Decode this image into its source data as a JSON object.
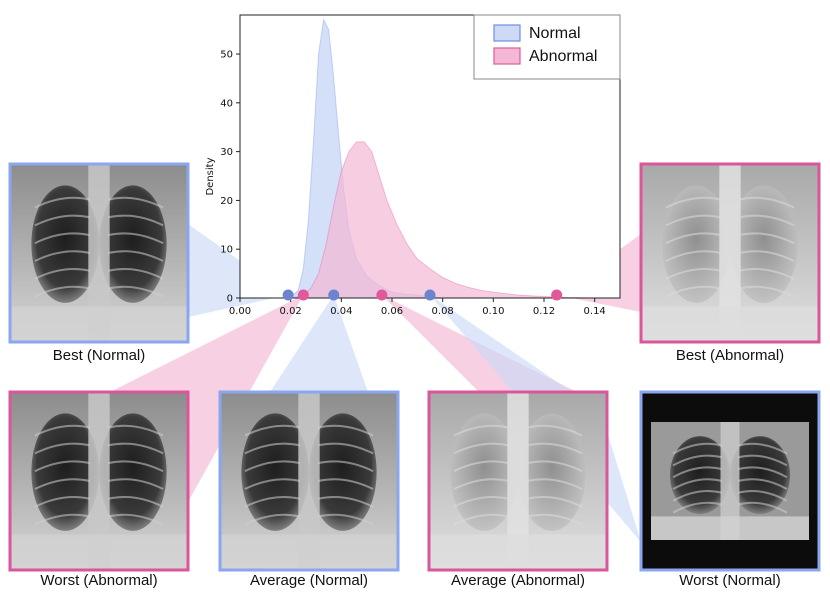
{
  "chart_data": {
    "type": "area",
    "title": "",
    "xlabel": "",
    "ylabel": "Density",
    "xlim": [
      0.0,
      0.15
    ],
    "ylim": [
      0,
      58
    ],
    "xticks": [
      "0.00",
      "0.02",
      "0.04",
      "0.06",
      "0.08",
      "0.10",
      "0.12",
      "0.14"
    ],
    "xtick_values": [
      0.0,
      0.02,
      0.04,
      0.06,
      0.08,
      0.1,
      0.12,
      0.14
    ],
    "yticks": [
      "0",
      "10",
      "20",
      "30",
      "40",
      "50"
    ],
    "ytick_values": [
      0,
      10,
      20,
      30,
      40,
      50
    ],
    "grid": false,
    "legend_position": "top-right",
    "series": [
      {
        "name": "Normal",
        "color": "#6f8fe0",
        "fill": "#cdd9f7",
        "x": [
          0.016,
          0.02,
          0.023,
          0.025,
          0.027,
          0.029,
          0.031,
          0.033,
          0.035,
          0.037,
          0.039,
          0.041,
          0.043,
          0.046,
          0.05,
          0.055,
          0.06,
          0.065,
          0.07,
          0.075,
          0.08
        ],
        "y": [
          0,
          0.3,
          1.5,
          6,
          16,
          32,
          50,
          57,
          55,
          45,
          33,
          22,
          14,
          8,
          4.5,
          2.5,
          1.2,
          0.8,
          0.6,
          0.3,
          0
        ]
      },
      {
        "name": "Abnormal",
        "color": "#e05a9a",
        "fill": "#f3b8d4",
        "x": [
          0.02,
          0.025,
          0.028,
          0.031,
          0.034,
          0.037,
          0.04,
          0.043,
          0.046,
          0.049,
          0.052,
          0.055,
          0.058,
          0.062,
          0.066,
          0.07,
          0.075,
          0.08,
          0.085,
          0.09,
          0.095,
          0.1,
          0.11,
          0.12,
          0.13,
          0.14
        ],
        "y": [
          0,
          0.5,
          2,
          5,
          11,
          19,
          26,
          30,
          32,
          32,
          30,
          25,
          20,
          15,
          11,
          8,
          6,
          4.2,
          3,
          2.2,
          1.6,
          1.2,
          0.6,
          0.3,
          0.1,
          0
        ]
      }
    ],
    "markers": [
      {
        "series": "Normal",
        "x": 0.019
      },
      {
        "series": "Normal",
        "x": 0.037
      },
      {
        "series": "Normal",
        "x": 0.075
      },
      {
        "series": "Abnormal",
        "x": 0.025
      },
      {
        "series": "Abnormal",
        "x": 0.056
      },
      {
        "series": "Abnormal",
        "x": 0.125
      }
    ]
  },
  "thumbnails": [
    {
      "id": "best-normal",
      "caption": "Best (Normal)",
      "series": "Normal",
      "marker_index": 0
    },
    {
      "id": "best-abnormal",
      "caption": "Best (Abnormal)",
      "series": "Abnormal",
      "marker_index": 5
    },
    {
      "id": "worst-abnormal",
      "caption": "Worst (Abnormal)",
      "series": "Abnormal",
      "marker_index": 3
    },
    {
      "id": "average-normal",
      "caption": "Average (Normal)",
      "series": "Normal",
      "marker_index": 1
    },
    {
      "id": "average-abnormal",
      "caption": "Average (Abnormal)",
      "series": "Abnormal",
      "marker_index": 4
    },
    {
      "id": "worst-normal",
      "caption": "Worst (Normal)",
      "series": "Normal",
      "marker_index": 2
    }
  ]
}
